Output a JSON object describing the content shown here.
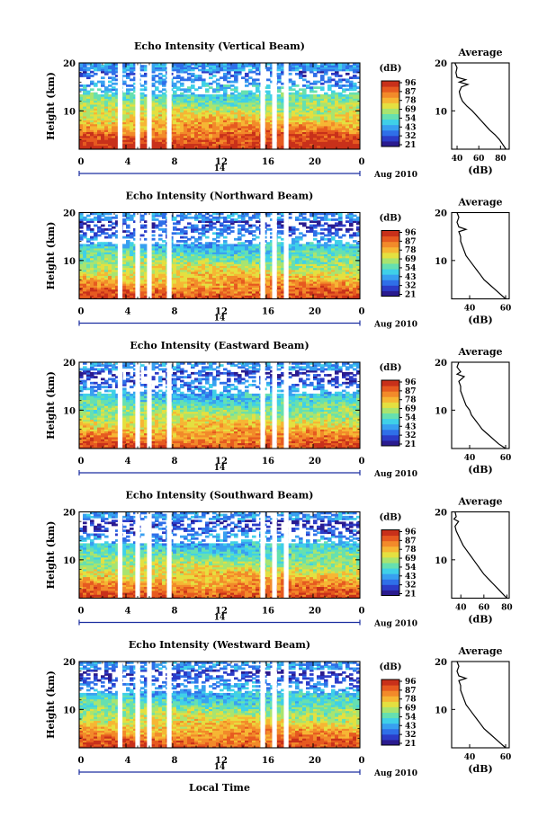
{
  "x_axis_label": "Local Time",
  "date_label": "Aug 2010",
  "colorbar_unit": "(dB)",
  "colorbar_ticks": [
    "96",
    "87",
    "78",
    "69",
    "54",
    "43",
    "32",
    "21"
  ],
  "colormap": [
    "#2a1b8f",
    "#2c3cc8",
    "#2f6fe8",
    "#38a0f0",
    "#3fd0e8",
    "#66e0b0",
    "#a8e470",
    "#e4e040",
    "#f6b634",
    "#f28a2a",
    "#e65a20",
    "#c8301a"
  ],
  "chart_data": [
    {
      "type": "heatmap",
      "title": "Echo Intensity (Vertical Beam)",
      "ylabel": "Height (km)",
      "x_ticks": [
        "0",
        "4",
        "8",
        "12",
        "16",
        "20",
        "0"
      ],
      "xlim": [
        0,
        24
      ],
      "day_label": "14",
      "y_ticks": [
        "10",
        "20"
      ],
      "ylim": [
        2,
        20
      ],
      "data_gaps_hours": [
        [
          3.3,
          3.7
        ],
        [
          4.8,
          5.2
        ],
        [
          5.8,
          6.2
        ],
        [
          7.5,
          7.9
        ],
        [
          15.5,
          15.9
        ],
        [
          16.5,
          16.9
        ],
        [
          17.5,
          17.9
        ]
      ],
      "profile": {
        "title": "Average",
        "xlabel": "(dB)",
        "x_ticks": [
          "40",
          "60",
          "80"
        ],
        "xlim": [
          35,
          88
        ],
        "y_ticks": [
          "10",
          "20"
        ],
        "ylim": [
          2,
          20
        ],
        "height": [
          2,
          3,
          4,
          5,
          6,
          7,
          8,
          9,
          10,
          11,
          12,
          13,
          14,
          15,
          15.5,
          16,
          16.5,
          17,
          18,
          19,
          20
        ],
        "values": [
          85,
          82,
          79,
          75,
          70,
          66,
          62,
          58,
          54,
          49,
          45,
          43,
          42,
          44,
          50,
          42,
          48,
          40,
          39,
          40,
          38
        ]
      }
    },
    {
      "type": "heatmap",
      "title": "Echo Intensity (Northward Beam)",
      "ylabel": "Height (km)",
      "x_ticks": [
        "0",
        "4",
        "8",
        "12",
        "16",
        "20",
        "0"
      ],
      "xlim": [
        0,
        24
      ],
      "day_label": "14",
      "y_ticks": [
        "10",
        "20"
      ],
      "ylim": [
        2,
        20
      ],
      "data_gaps_hours": [
        [
          3.3,
          3.7
        ],
        [
          4.8,
          5.2
        ],
        [
          5.8,
          6.2
        ],
        [
          7.5,
          7.9
        ],
        [
          15.5,
          15.9
        ],
        [
          16.5,
          16.9
        ],
        [
          17.5,
          17.9
        ]
      ],
      "profile": {
        "title": "Average",
        "xlabel": "(dB)",
        "x_ticks": [
          "40",
          "60"
        ],
        "xlim": [
          30,
          62
        ],
        "y_ticks": [
          "10",
          "20"
        ],
        "ylim": [
          2,
          20
        ],
        "height": [
          2,
          3,
          4,
          5,
          6,
          7,
          8,
          9,
          10,
          11,
          12,
          13,
          14,
          15,
          16,
          16.5,
          17,
          18,
          19,
          20
        ],
        "values": [
          60,
          57,
          54,
          51,
          48,
          46,
          44,
          42,
          40,
          38,
          37,
          36,
          35,
          35,
          34,
          38,
          34,
          33,
          34,
          33
        ]
      }
    },
    {
      "type": "heatmap",
      "title": "Echo Intensity (Eastward Beam)",
      "ylabel": "Height (km)",
      "x_ticks": [
        "0",
        "4",
        "8",
        "12",
        "16",
        "20",
        "0"
      ],
      "xlim": [
        0,
        24
      ],
      "day_label": "14",
      "y_ticks": [
        "10",
        "20"
      ],
      "ylim": [
        2,
        20
      ],
      "data_gaps_hours": [
        [
          3.3,
          3.7
        ],
        [
          4.8,
          5.2
        ],
        [
          5.8,
          6.2
        ],
        [
          7.5,
          7.9
        ],
        [
          15.5,
          15.9
        ],
        [
          16.5,
          16.9
        ],
        [
          17.5,
          17.9
        ]
      ],
      "profile": {
        "title": "Average",
        "xlabel": "(dB)",
        "x_ticks": [
          "40",
          "60"
        ],
        "xlim": [
          30,
          62
        ],
        "y_ticks": [
          "10",
          "20"
        ],
        "ylim": [
          2,
          20
        ],
        "height": [
          2,
          3,
          4,
          5,
          6,
          7,
          8,
          9,
          10,
          11,
          12,
          13,
          14,
          15,
          16,
          17,
          17.5,
          18,
          19,
          20
        ],
        "values": [
          60,
          56,
          53,
          50,
          47,
          45,
          43,
          41,
          40,
          38,
          37,
          36,
          35,
          35,
          34,
          37,
          33,
          35,
          33,
          34
        ]
      }
    },
    {
      "type": "heatmap",
      "title": "Echo Intensity (Southward Beam)",
      "ylabel": "Height (km)",
      "x_ticks": [
        "0",
        "4",
        "8",
        "12",
        "16",
        "20",
        "0"
      ],
      "xlim": [
        0,
        24
      ],
      "day_label": "14",
      "y_ticks": [
        "10",
        "20"
      ],
      "ylim": [
        2,
        20
      ],
      "data_gaps_hours": [
        [
          3.3,
          3.7
        ],
        [
          4.8,
          5.2
        ],
        [
          5.8,
          6.2
        ],
        [
          7.5,
          7.9
        ],
        [
          15.5,
          15.9
        ],
        [
          16.5,
          16.9
        ],
        [
          17.5,
          17.9
        ]
      ],
      "profile": {
        "title": "Average",
        "xlabel": "(dB)",
        "x_ticks": [
          "40",
          "60",
          "80"
        ],
        "xlim": [
          32,
          82
        ],
        "y_ticks": [
          "10",
          "20"
        ],
        "ylim": [
          2,
          20
        ],
        "height": [
          2,
          3,
          4,
          5,
          6,
          7,
          8,
          9,
          10,
          11,
          12,
          13,
          14,
          15,
          16,
          17,
          18,
          18.5,
          19,
          20
        ],
        "values": [
          80,
          76,
          72,
          68,
          64,
          60,
          57,
          54,
          51,
          48,
          45,
          42,
          40,
          38,
          36,
          35,
          38,
          34,
          36,
          35
        ]
      }
    },
    {
      "type": "heatmap",
      "title": "Echo Intensity (Westward Beam)",
      "ylabel": "Height (km)",
      "x_ticks": [
        "0",
        "4",
        "8",
        "12",
        "16",
        "20",
        "0"
      ],
      "xlim": [
        0,
        24
      ],
      "day_label": "14",
      "y_ticks": [
        "10",
        "20"
      ],
      "ylim": [
        2,
        20
      ],
      "data_gaps_hours": [
        [
          3.3,
          3.7
        ],
        [
          4.8,
          5.2
        ],
        [
          5.8,
          6.2
        ],
        [
          7.5,
          7.9
        ],
        [
          15.5,
          15.9
        ],
        [
          16.5,
          16.9
        ],
        [
          17.5,
          17.9
        ]
      ],
      "profile": {
        "title": "Average",
        "xlabel": "(dB)",
        "x_ticks": [
          "40",
          "60"
        ],
        "xlim": [
          30,
          62
        ],
        "y_ticks": [
          "10",
          "20"
        ],
        "ylim": [
          2,
          20
        ],
        "height": [
          2,
          3,
          4,
          5,
          6,
          7,
          8,
          9,
          10,
          11,
          12,
          13,
          14,
          15,
          16,
          16.5,
          17,
          18,
          19,
          20
        ],
        "values": [
          60,
          57,
          54,
          51,
          48,
          46,
          44,
          42,
          40,
          38,
          37,
          36,
          35,
          35,
          34,
          38,
          34,
          33,
          34,
          33
        ]
      }
    }
  ]
}
